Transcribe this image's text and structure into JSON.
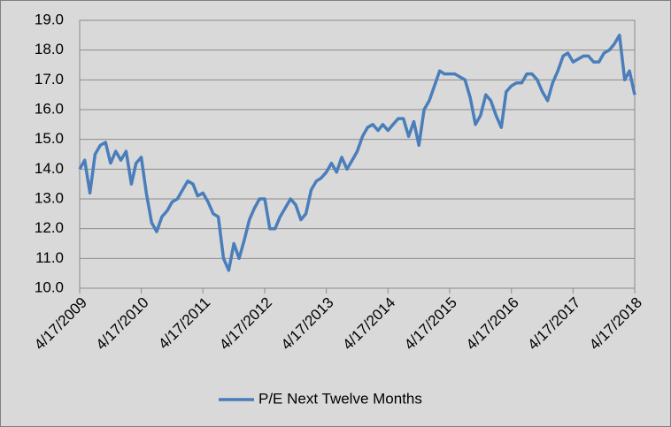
{
  "chart_data": {
    "type": "line",
    "x": [
      "4/17/2009",
      "5/17/2009",
      "6/17/2009",
      "7/17/2009",
      "8/17/2009",
      "9/17/2009",
      "10/17/2009",
      "11/17/2009",
      "12/17/2009",
      "1/17/2010",
      "2/17/2010",
      "3/17/2010",
      "4/17/2010",
      "5/17/2010",
      "6/17/2010",
      "7/17/2010",
      "8/17/2010",
      "9/17/2010",
      "10/17/2010",
      "11/17/2010",
      "12/17/2010",
      "1/17/2011",
      "2/17/2011",
      "3/17/2011",
      "4/17/2011",
      "5/17/2011",
      "6/17/2011",
      "7/17/2011",
      "8/17/2011",
      "9/17/2011",
      "10/17/2011",
      "11/17/2011",
      "12/17/2011",
      "1/17/2012",
      "2/17/2012",
      "3/17/2012",
      "4/17/2012",
      "5/17/2012",
      "6/17/2012",
      "7/17/2012",
      "8/17/2012",
      "9/17/2012",
      "10/17/2012",
      "11/17/2012",
      "12/17/2012",
      "1/17/2013",
      "2/17/2013",
      "3/17/2013",
      "4/17/2013",
      "5/17/2013",
      "6/17/2013",
      "7/17/2013",
      "8/17/2013",
      "9/17/2013",
      "10/17/2013",
      "11/17/2013",
      "12/17/2013",
      "1/17/2014",
      "2/17/2014",
      "3/17/2014",
      "4/17/2014",
      "5/17/2014",
      "6/17/2014",
      "7/17/2014",
      "8/17/2014",
      "9/17/2014",
      "10/17/2014",
      "11/17/2014",
      "12/17/2014",
      "1/17/2015",
      "2/17/2015",
      "3/17/2015",
      "4/17/2015",
      "5/17/2015",
      "6/17/2015",
      "7/17/2015",
      "8/17/2015",
      "9/17/2015",
      "10/17/2015",
      "11/17/2015",
      "12/17/2015",
      "1/17/2016",
      "2/17/2016",
      "3/17/2016",
      "4/17/2016",
      "5/17/2016",
      "6/17/2016",
      "7/17/2016",
      "8/17/2016",
      "9/17/2016",
      "10/17/2016",
      "11/17/2016",
      "12/17/2016",
      "1/17/2017",
      "2/17/2017",
      "3/17/2017",
      "4/17/2017",
      "5/17/2017",
      "6/17/2017",
      "7/17/2017",
      "8/17/2017",
      "9/17/2017",
      "10/17/2017",
      "11/17/2017",
      "12/17/2017",
      "1/17/2018",
      "2/17/2018",
      "3/17/2018",
      "4/17/2018"
    ],
    "series": [
      {
        "name": "P/E Next Twelve Months",
        "color": "#4a7ebb",
        "values": [
          14.0,
          14.3,
          13.2,
          14.5,
          14.8,
          14.9,
          14.2,
          14.6,
          14.3,
          14.6,
          13.5,
          14.2,
          14.4,
          13.2,
          12.2,
          11.9,
          12.4,
          12.6,
          12.9,
          13.0,
          13.3,
          13.6,
          13.5,
          13.1,
          13.2,
          12.9,
          12.5,
          12.4,
          11.0,
          10.6,
          11.5,
          11.0,
          11.6,
          12.3,
          12.7,
          13.0,
          13.0,
          12.0,
          12.0,
          12.4,
          12.7,
          13.0,
          12.8,
          12.3,
          12.5,
          13.3,
          13.6,
          13.7,
          13.9,
          14.2,
          13.9,
          14.4,
          14.0,
          14.3,
          14.6,
          15.1,
          15.4,
          15.5,
          15.3,
          15.5,
          15.3,
          15.5,
          15.7,
          15.7,
          15.1,
          15.6,
          14.8,
          16.0,
          16.3,
          16.8,
          17.3,
          17.2,
          17.2,
          17.2,
          17.1,
          17.0,
          16.4,
          15.5,
          15.8,
          16.5,
          16.3,
          15.8,
          15.4,
          16.6,
          16.8,
          16.9,
          16.9,
          17.2,
          17.2,
          17.0,
          16.6,
          16.3,
          16.9,
          17.3,
          17.8,
          17.9,
          17.6,
          17.7,
          17.8,
          17.8,
          17.6,
          17.6,
          17.9,
          18.0,
          18.2,
          18.5,
          17.0,
          17.3,
          16.5
        ]
      }
    ],
    "xlim": [
      "4/17/2009",
      "4/17/2018"
    ],
    "xticks": [
      "4/17/2009",
      "4/17/2010",
      "4/17/2011",
      "4/17/2012",
      "4/17/2013",
      "4/17/2014",
      "4/17/2015",
      "4/17/2016",
      "4/17/2017",
      "4/17/2018"
    ],
    "ylim": [
      10,
      19
    ],
    "yticks": [
      {
        "value": 10,
        "label": "10.0"
      },
      {
        "value": 11,
        "label": "11.0"
      },
      {
        "value": 12,
        "label": "12.0"
      },
      {
        "value": 13,
        "label": "13.0"
      },
      {
        "value": 14,
        "label": "14.0"
      },
      {
        "value": 15,
        "label": "15.0"
      },
      {
        "value": 16,
        "label": "16.0"
      },
      {
        "value": 17,
        "label": "17.0"
      },
      {
        "value": 18,
        "label": "18.0"
      },
      {
        "value": 19,
        "label": "19.0"
      }
    ],
    "grid": true,
    "legend": "bottom"
  }
}
